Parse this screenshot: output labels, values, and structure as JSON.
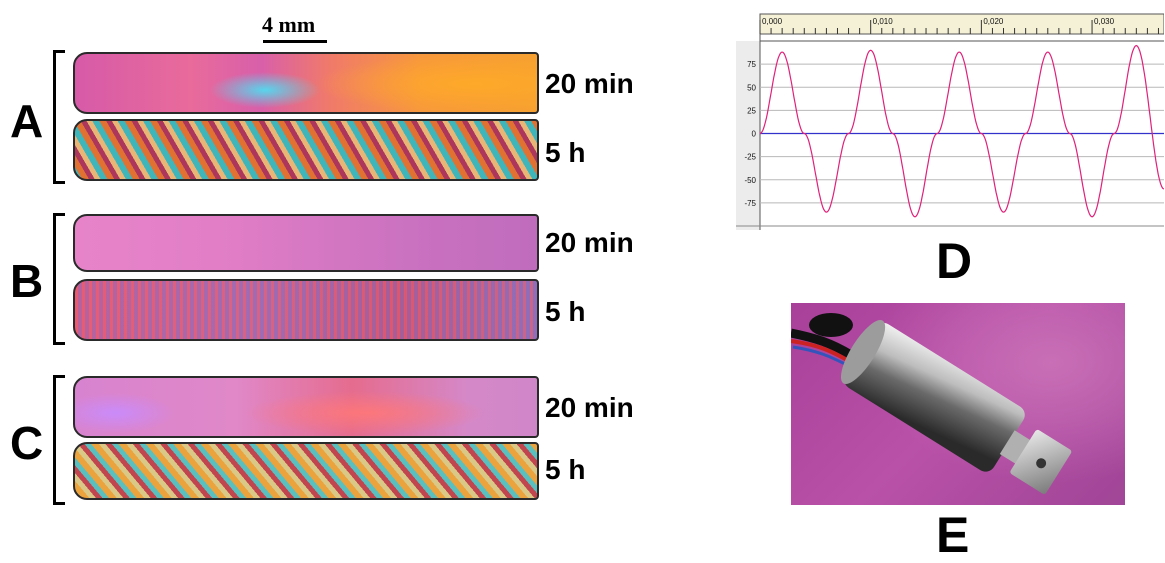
{
  "scale_bar": {
    "label": "4 mm"
  },
  "panels": [
    {
      "letter": "A",
      "times": [
        "20 min",
        "5 h"
      ]
    },
    {
      "letter": "B",
      "times": [
        "20 min",
        "5 h"
      ]
    },
    {
      "letter": "C",
      "times": [
        "20 min",
        "5 h"
      ]
    }
  ],
  "panel_d": {
    "letter": "D",
    "chart_data": {
      "type": "line",
      "title": "",
      "xlabel": "",
      "ylabel": "",
      "x_ticks": [
        "0,000",
        "0,010",
        "0,020",
        "0,030"
      ],
      "y_ticks": [
        "75",
        "50",
        "25",
        "0",
        "-25",
        "-50",
        "-75"
      ],
      "xlim": [
        0,
        0.0365
      ],
      "ylim": [
        -100,
        100
      ],
      "grid": true,
      "zero_line_color": "#3333cc",
      "series": [
        {
          "color": "#e0207a",
          "x": [
            0.0,
            0.002,
            0.004,
            0.006,
            0.008,
            0.01,
            0.012,
            0.014,
            0.016,
            0.018,
            0.02,
            0.022,
            0.024,
            0.026,
            0.028,
            0.03,
            0.032,
            0.034,
            0.0365
          ],
          "values": [
            0,
            88,
            0,
            -85,
            0,
            90,
            0,
            -90,
            0,
            88,
            0,
            -85,
            0,
            88,
            0,
            -90,
            0,
            95,
            -60
          ]
        }
      ]
    }
  },
  "panel_e": {
    "letter": "E"
  }
}
